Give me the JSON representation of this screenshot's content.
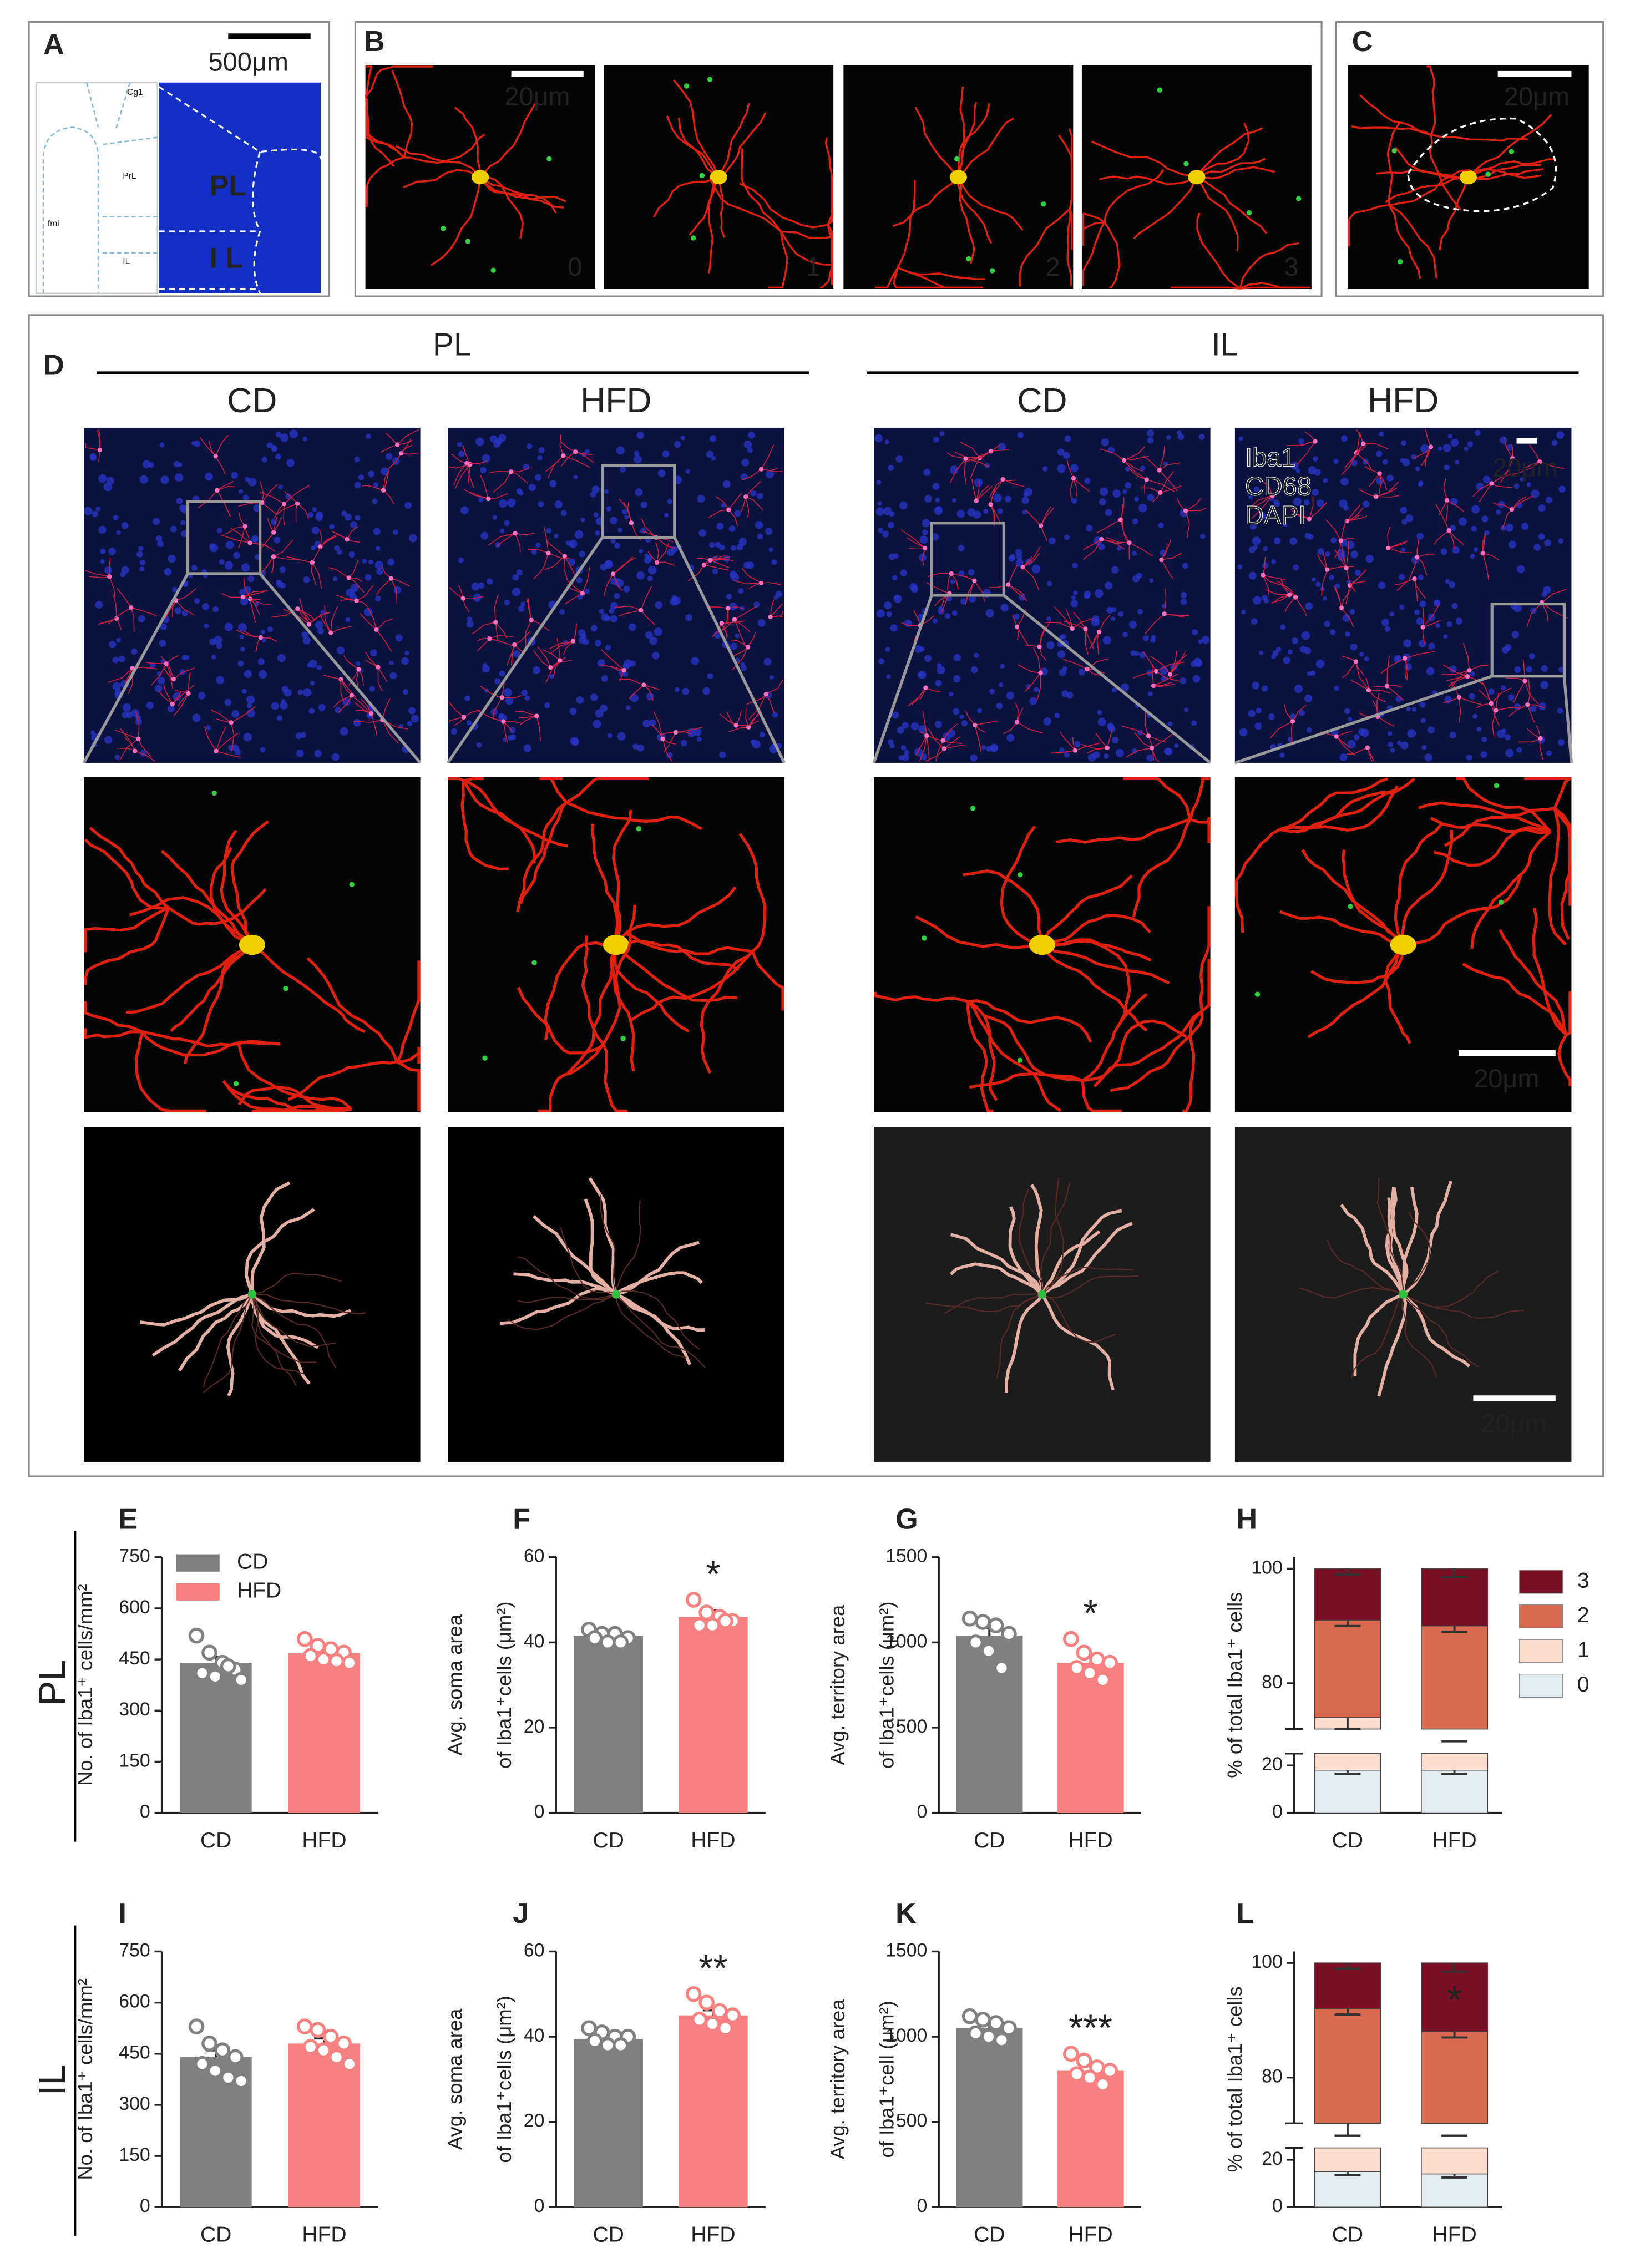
{
  "panels": {
    "A": {
      "letter": "A",
      "scale_bar": "500μm",
      "regions": [
        "PL",
        "I L"
      ],
      "atlas_labels": [
        "Cg1",
        "PrL",
        "fmi",
        "IL"
      ]
    },
    "B": {
      "letter": "B",
      "scale_bar": "20μm",
      "scores": [
        "0",
        "1",
        "2",
        "3"
      ]
    },
    "C": {
      "letter": "C",
      "scale_bar": "20μm"
    },
    "D": {
      "letter": "D",
      "regions": [
        "PL",
        "IL"
      ],
      "groups": [
        "CD",
        "HFD",
        "CD",
        "HFD"
      ],
      "stains": [
        "Iba1",
        "CD68",
        "DAPI"
      ],
      "scale_bars": [
        "20μm",
        "20μm",
        "20μm"
      ]
    }
  },
  "row_labels": [
    "PL",
    "IL"
  ],
  "chart_data": [
    {
      "type": "bar",
      "panel": "E",
      "ylabel": [
        "No. of Iba1⁺ cells/mm²"
      ],
      "categories": [
        "CD",
        "HFD"
      ],
      "legend": [
        "CD",
        "HFD"
      ],
      "colors": [
        "#808080",
        "#f88080"
      ],
      "values": [
        440,
        468
      ],
      "errors": [
        18,
        10
      ],
      "points": [
        [
          520,
          470,
          440,
          420,
          410,
          400,
          430,
          390
        ],
        [
          510,
          490,
          480,
          470,
          460,
          450,
          445,
          440
        ]
      ],
      "ylim": [
        0,
        750
      ],
      "yticks": [
        0,
        150,
        300,
        450,
        600,
        750
      ]
    },
    {
      "type": "bar",
      "panel": "F",
      "ylabel": [
        "Avg. soma area",
        "of Iba1⁺cells (μm²)"
      ],
      "categories": [
        "CD",
        "HFD"
      ],
      "colors": [
        "#808080",
        "#f88080"
      ],
      "values": [
        41.5,
        46
      ],
      "errors": [
        1,
        1.5
      ],
      "points": [
        [
          43,
          42,
          42,
          41,
          41,
          40,
          40
        ],
        [
          50,
          47,
          46,
          45,
          44,
          44,
          45
        ]
      ],
      "annotation": "*",
      "ylim": [
        0,
        60
      ],
      "yticks": [
        0,
        20,
        40,
        60
      ]
    },
    {
      "type": "bar",
      "panel": "G",
      "ylabel": [
        "Avg. territory area",
        "of Iba1⁺cells (μm²)"
      ],
      "categories": [
        "CD",
        "HFD"
      ],
      "colors": [
        "#808080",
        "#f88080"
      ],
      "values": [
        1040,
        880
      ],
      "errors": [
        45,
        30
      ],
      "points": [
        [
          1140,
          1120,
          1100,
          1050,
          1000,
          950,
          850
        ],
        [
          1020,
          940,
          900,
          880,
          850,
          820,
          780
        ]
      ],
      "annotation": "*",
      "ylim": [
        0,
        1500
      ],
      "yticks": [
        0,
        500,
        1000,
        1500
      ]
    },
    {
      "type": "stacked_bar",
      "panel": "H",
      "ylabel": [
        "% of total Iba1⁺ cells"
      ],
      "categories": [
        "CD",
        "HFD"
      ],
      "ylim": [
        0,
        102
      ],
      "yticks": [
        0,
        20,
        80,
        100
      ],
      "axis_break": [
        25,
        72
      ],
      "legend": "right",
      "series": [
        {
          "name": "0",
          "color": "#e3edf1",
          "values": [
            18,
            18
          ],
          "errors": [
            1.5,
            1.5
          ]
        },
        {
          "name": "1",
          "color": "#fbdccf",
          "values": [
            56,
            53
          ],
          "errors": [
            2,
            2
          ]
        },
        {
          "name": "2",
          "color": "#d9694f",
          "values": [
            17,
            19
          ],
          "errors": [
            1,
            1
          ]
        },
        {
          "name": "3",
          "color": "#7b0f26",
          "values": [
            9,
            10
          ],
          "errors": [
            1,
            1.5
          ]
        }
      ]
    },
    {
      "type": "bar",
      "panel": "I",
      "ylabel": [
        "No. of Iba1⁺ cells/mm²"
      ],
      "categories": [
        "CD",
        "HFD"
      ],
      "colors": [
        "#808080",
        "#f88080"
      ],
      "values": [
        440,
        480
      ],
      "errors": [
        20,
        15
      ],
      "points": [
        [
          530,
          480,
          460,
          440,
          420,
          400,
          380,
          370
        ],
        [
          530,
          520,
          500,
          480,
          470,
          460,
          440,
          420
        ]
      ],
      "ylim": [
        0,
        750
      ],
      "yticks": [
        0,
        150,
        300,
        450,
        600,
        750
      ]
    },
    {
      "type": "bar",
      "panel": "J",
      "ylabel": [
        "Avg. soma area",
        "of Iba1⁺cells (μm²)"
      ],
      "categories": [
        "CD",
        "HFD"
      ],
      "colors": [
        "#808080",
        "#f88080"
      ],
      "values": [
        39.5,
        45
      ],
      "errors": [
        0.8,
        1.2
      ],
      "points": [
        [
          42,
          41,
          40,
          40,
          39,
          38,
          38
        ],
        [
          50,
          48,
          46,
          45,
          44,
          43,
          42
        ]
      ],
      "annotation": "**",
      "ylim": [
        0,
        60
      ],
      "yticks": [
        0,
        20,
        40,
        60
      ]
    },
    {
      "type": "bar",
      "panel": "K",
      "ylabel": [
        "Avg. territory area",
        "of Iba1⁺cell (μm²)"
      ],
      "categories": [
        "CD",
        "HFD"
      ],
      "colors": [
        "#808080",
        "#f88080"
      ],
      "values": [
        1050,
        800
      ],
      "errors": [
        25,
        30
      ],
      "points": [
        [
          1120,
          1100,
          1080,
          1050,
          1020,
          1000,
          980
        ],
        [
          900,
          860,
          820,
          800,
          780,
          760,
          720
        ]
      ],
      "annotation": "***",
      "ylim": [
        0,
        1500
      ],
      "yticks": [
        0,
        500,
        1000,
        1500
      ]
    },
    {
      "type": "stacked_bar",
      "panel": "L",
      "ylabel": [
        "% of total Iba1⁺ cells"
      ],
      "categories": [
        "CD",
        "HFD"
      ],
      "ylim": [
        0,
        102
      ],
      "yticks": [
        0,
        20,
        80,
        100
      ],
      "axis_break": [
        25,
        72
      ],
      "series": [
        {
          "name": "0",
          "color": "#e3edf1",
          "values": [
            15,
            14
          ],
          "errors": [
            1.5,
            1.5
          ]
        },
        {
          "name": "1",
          "color": "#fbdccf",
          "values": [
            57,
            53
          ],
          "errors": [
            2,
            2
          ]
        },
        {
          "name": "2",
          "color": "#d9694f",
          "values": [
            20,
            21
          ],
          "errors": [
            1,
            1
          ]
        },
        {
          "name": "3",
          "color": "#7b0f26",
          "values": [
            8,
            12
          ],
          "errors": [
            1,
            1.5
          ],
          "annotations": [
            null,
            "*"
          ]
        }
      ]
    }
  ]
}
